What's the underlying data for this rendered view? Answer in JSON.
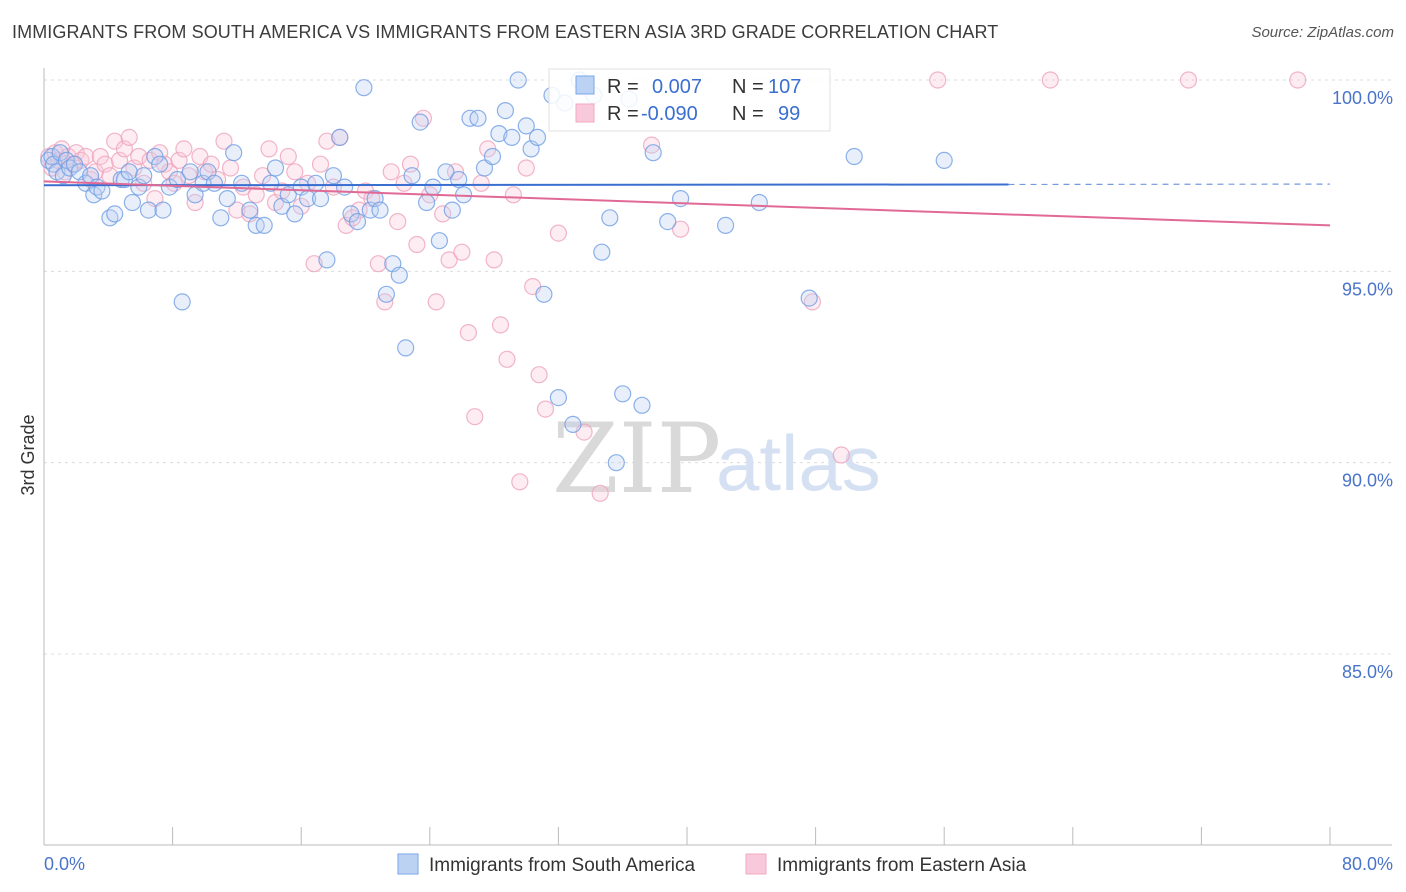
{
  "title": "IMMIGRANTS FROM SOUTH AMERICA VS IMMIGRANTS FROM EASTERN ASIA 3RD GRADE CORRELATION CHART",
  "source": "Source: ZipAtlas.com",
  "watermark": {
    "zip": "ZIP",
    "atlas": "atlas"
  },
  "chart_data": {
    "type": "scatter",
    "ylabel": "3rd Grade",
    "xlim": [
      0,
      80
    ],
    "ylim": [
      80,
      100.8
    ],
    "y_ticks": [
      {
        "value": 100,
        "label": "100.0%"
      },
      {
        "value": 95,
        "label": "95.0%"
      },
      {
        "value": 90,
        "label": "90.0%"
      },
      {
        "value": 85,
        "label": "85.0%"
      }
    ],
    "x_tick_values": [
      0,
      8,
      16,
      24,
      32,
      40,
      48,
      56,
      64,
      72,
      80
    ],
    "x_end_labels": {
      "min": "0.0%",
      "max": "80.0%"
    },
    "series": [
      {
        "name": "Immigrants from South America",
        "color": "#7aa6e8",
        "line_color": "#3a6fd0",
        "r_label": "R =",
        "r_value": "0.007",
        "n_label": "N =",
        "n_value": "107",
        "trend": {
          "x0": 0,
          "y0": 97.25,
          "x1": 60,
          "y1": 97.27,
          "dash_to_x": 80,
          "dash_to_y": 97.28
        },
        "points": [
          [
            0.3,
            97.9
          ],
          [
            0.5,
            98.0
          ],
          [
            0.6,
            97.8
          ],
          [
            0.8,
            97.6
          ],
          [
            1.0,
            98.1
          ],
          [
            1.2,
            97.5
          ],
          [
            1.4,
            97.9
          ],
          [
            1.6,
            97.7
          ],
          [
            1.9,
            97.8
          ],
          [
            2.2,
            97.6
          ],
          [
            2.6,
            97.3
          ],
          [
            2.9,
            97.5
          ],
          [
            3.1,
            97.0
          ],
          [
            3.3,
            97.2
          ],
          [
            3.6,
            97.1
          ],
          [
            4.1,
            96.4
          ],
          [
            4.4,
            96.5
          ],
          [
            4.8,
            97.4
          ],
          [
            5.0,
            97.4
          ],
          [
            5.3,
            97.6
          ],
          [
            5.5,
            96.8
          ],
          [
            5.9,
            97.2
          ],
          [
            6.2,
            97.5
          ],
          [
            6.5,
            96.6
          ],
          [
            6.9,
            98.0
          ],
          [
            7.2,
            97.8
          ],
          [
            7.4,
            96.6
          ],
          [
            7.8,
            97.2
          ],
          [
            8.3,
            97.4
          ],
          [
            8.6,
            94.2
          ],
          [
            9.1,
            97.6
          ],
          [
            9.4,
            97.0
          ],
          [
            9.9,
            97.3
          ],
          [
            10.2,
            97.6
          ],
          [
            10.6,
            97.3
          ],
          [
            11.0,
            96.4
          ],
          [
            11.4,
            96.9
          ],
          [
            11.8,
            98.1
          ],
          [
            12.3,
            97.3
          ],
          [
            12.8,
            96.6
          ],
          [
            13.2,
            96.2
          ],
          [
            13.7,
            96.2
          ],
          [
            14.1,
            97.3
          ],
          [
            14.4,
            97.7
          ],
          [
            14.8,
            96.7
          ],
          [
            15.2,
            97.0
          ],
          [
            15.6,
            96.5
          ],
          [
            16.0,
            97.2
          ],
          [
            16.4,
            96.9
          ],
          [
            16.9,
            97.3
          ],
          [
            17.2,
            96.9
          ],
          [
            17.6,
            95.3
          ],
          [
            18.0,
            97.5
          ],
          [
            18.4,
            98.5
          ],
          [
            18.7,
            97.2
          ],
          [
            19.1,
            96.5
          ],
          [
            19.5,
            96.3
          ],
          [
            19.9,
            99.8
          ],
          [
            20.3,
            96.6
          ],
          [
            20.6,
            96.9
          ],
          [
            20.9,
            96.6
          ],
          [
            21.3,
            94.4
          ],
          [
            21.7,
            95.2
          ],
          [
            22.1,
            94.9
          ],
          [
            22.5,
            93.0
          ],
          [
            22.9,
            97.5
          ],
          [
            23.4,
            98.9
          ],
          [
            23.8,
            96.8
          ],
          [
            24.2,
            97.2
          ],
          [
            24.6,
            95.8
          ],
          [
            25.0,
            97.6
          ],
          [
            25.4,
            96.6
          ],
          [
            25.8,
            97.4
          ],
          [
            26.1,
            97.0
          ],
          [
            26.5,
            99.0
          ],
          [
            27.0,
            99.0
          ],
          [
            27.4,
            97.7
          ],
          [
            27.9,
            98.0
          ],
          [
            28.3,
            98.6
          ],
          [
            28.7,
            99.2
          ],
          [
            29.1,
            98.5
          ],
          [
            29.5,
            100.0
          ],
          [
            30.0,
            98.8
          ],
          [
            30.3,
            98.2
          ],
          [
            30.7,
            98.5
          ],
          [
            31.1,
            94.4
          ],
          [
            31.6,
            99.6
          ],
          [
            32.0,
            91.7
          ],
          [
            32.4,
            99.4
          ],
          [
            32.9,
            91.0
          ],
          [
            33.3,
            100.0
          ],
          [
            33.7,
            99.9
          ],
          [
            34.2,
            99.6
          ],
          [
            34.7,
            95.5
          ],
          [
            35.2,
            96.4
          ],
          [
            35.6,
            90.0
          ],
          [
            36.0,
            91.8
          ],
          [
            36.4,
            99.5
          ],
          [
            37.2,
            91.5
          ],
          [
            37.9,
            98.1
          ],
          [
            38.8,
            96.3
          ],
          [
            39.6,
            96.9
          ],
          [
            42.4,
            96.2
          ],
          [
            44.5,
            96.8
          ],
          [
            47.6,
            94.3
          ],
          [
            50.4,
            98.0
          ],
          [
            56.0,
            97.9
          ]
        ]
      },
      {
        "name": "Immigrants from Eastern Asia",
        "color": "#f2a7c1",
        "line_color": "#e06a95",
        "r_label": "R =",
        "r_value": "-0.090",
        "n_label": "N =",
        "n_value": "99",
        "trend": {
          "x0": 0,
          "y0": 97.35,
          "x1": 80,
          "y1": 96.2
        },
        "points": [
          [
            0.3,
            98.0
          ],
          [
            0.5,
            97.7
          ],
          [
            0.7,
            98.1
          ],
          [
            0.9,
            97.9
          ],
          [
            1.1,
            98.2
          ],
          [
            1.3,
            97.6
          ],
          [
            1.5,
            98.0
          ],
          [
            1.8,
            97.8
          ],
          [
            2.0,
            98.1
          ],
          [
            2.3,
            97.9
          ],
          [
            2.6,
            98.0
          ],
          [
            2.9,
            97.4
          ],
          [
            3.2,
            97.6
          ],
          [
            3.5,
            98.0
          ],
          [
            3.8,
            97.8
          ],
          [
            4.1,
            97.5
          ],
          [
            4.4,
            98.4
          ],
          [
            4.7,
            97.9
          ],
          [
            5.0,
            98.2
          ],
          [
            5.3,
            98.5
          ],
          [
            5.6,
            97.7
          ],
          [
            5.9,
            98.0
          ],
          [
            6.2,
            97.3
          ],
          [
            6.6,
            97.9
          ],
          [
            6.9,
            96.9
          ],
          [
            7.2,
            98.1
          ],
          [
            7.5,
            97.8
          ],
          [
            7.8,
            97.6
          ],
          [
            8.1,
            97.3
          ],
          [
            8.4,
            97.9
          ],
          [
            8.7,
            98.2
          ],
          [
            9.0,
            97.5
          ],
          [
            9.4,
            96.8
          ],
          [
            9.7,
            98.0
          ],
          [
            10.0,
            97.6
          ],
          [
            10.4,
            97.8
          ],
          [
            10.8,
            97.4
          ],
          [
            11.2,
            98.4
          ],
          [
            11.6,
            97.7
          ],
          [
            12.0,
            96.6
          ],
          [
            12.4,
            97.2
          ],
          [
            12.8,
            96.5
          ],
          [
            13.2,
            97.0
          ],
          [
            13.6,
            97.5
          ],
          [
            14.0,
            98.2
          ],
          [
            14.4,
            96.8
          ],
          [
            14.8,
            97.1
          ],
          [
            15.2,
            98.0
          ],
          [
            15.6,
            97.6
          ],
          [
            16.0,
            96.7
          ],
          [
            16.4,
            97.3
          ],
          [
            16.8,
            95.2
          ],
          [
            17.2,
            97.8
          ],
          [
            17.6,
            98.4
          ],
          [
            18.0,
            97.2
          ],
          [
            18.4,
            98.5
          ],
          [
            18.8,
            96.2
          ],
          [
            19.2,
            96.4
          ],
          [
            19.6,
            96.6
          ],
          [
            20.0,
            97.1
          ],
          [
            20.4,
            96.9
          ],
          [
            20.8,
            95.2
          ],
          [
            21.2,
            94.2
          ],
          [
            21.6,
            97.6
          ],
          [
            22.0,
            96.3
          ],
          [
            22.4,
            97.3
          ],
          [
            22.8,
            97.8
          ],
          [
            23.2,
            95.7
          ],
          [
            23.6,
            99.0
          ],
          [
            24.0,
            97.0
          ],
          [
            24.4,
            94.2
          ],
          [
            24.8,
            96.5
          ],
          [
            25.2,
            95.3
          ],
          [
            25.6,
            97.6
          ],
          [
            26.0,
            95.5
          ],
          [
            26.4,
            93.4
          ],
          [
            26.8,
            91.2
          ],
          [
            27.2,
            97.3
          ],
          [
            27.6,
            98.2
          ],
          [
            28.0,
            95.3
          ],
          [
            28.4,
            93.6
          ],
          [
            28.8,
            92.7
          ],
          [
            29.2,
            97.0
          ],
          [
            29.6,
            89.5
          ],
          [
            30.0,
            97.7
          ],
          [
            30.4,
            94.6
          ],
          [
            30.8,
            92.3
          ],
          [
            31.2,
            91.4
          ],
          [
            32.0,
            96.0
          ],
          [
            33.6,
            90.8
          ],
          [
            34.6,
            89.2
          ],
          [
            37.8,
            98.3
          ],
          [
            39.6,
            96.1
          ],
          [
            47.8,
            94.2
          ],
          [
            49.6,
            90.2
          ],
          [
            55.6,
            100.0
          ],
          [
            62.6,
            100.0
          ],
          [
            71.2,
            100.0
          ],
          [
            78.0,
            100.0
          ]
        ]
      }
    ]
  }
}
